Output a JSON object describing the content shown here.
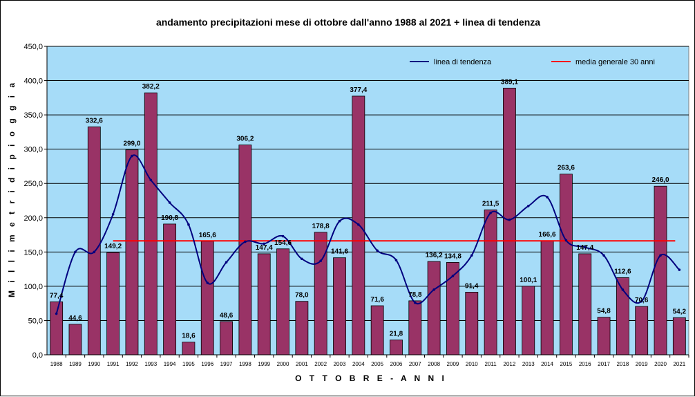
{
  "chart_data": {
    "type": "bar",
    "title": "andamento precipitazioni mese di ottobre dall'anno 1988 al 2021 + linea di tendenza",
    "xlabel": "O T T O B R E  -  A N N I",
    "ylabel": "M i l l i m e t r i   d i   p i o g g i a",
    "ylim": [
      0,
      450
    ],
    "yticks": [
      "0,0",
      "50,0",
      "100,0",
      "150,0",
      "200,0",
      "250,0",
      "300,0",
      "350,0",
      "400,0",
      "450,0"
    ],
    "ytick_values": [
      0,
      50,
      100,
      150,
      200,
      250,
      300,
      350,
      400,
      450
    ],
    "grid": true,
    "legend_position": "top-right",
    "categories": [
      "1988",
      "1989",
      "1990",
      "1991",
      "1992",
      "1993",
      "1994",
      "1995",
      "1996",
      "1997",
      "1998",
      "1999",
      "2000",
      "2001",
      "2002",
      "2003",
      "2004",
      "2005",
      "2006",
      "2007",
      "2008",
      "2009",
      "2010",
      "2011",
      "2012",
      "2013",
      "2014",
      "2015",
      "2016",
      "2017",
      "2018",
      "2019",
      "2020",
      "2021"
    ],
    "values": [
      77.4,
      44.6,
      332.6,
      149.2,
      299.0,
      382.2,
      190.8,
      18.6,
      165.6,
      48.6,
      306.2,
      147.4,
      154.6,
      78.0,
      178.8,
      141.6,
      377.4,
      71.6,
      21.8,
      78.8,
      136.2,
      134.8,
      91.4,
      211.5,
      389.1,
      100.1,
      166.6,
      263.6,
      147.4,
      54.8,
      112.6,
      70.6,
      246.0,
      54.2
    ],
    "value_labels": [
      "77,4",
      "44,6",
      "332,6",
      "149,2",
      "299,0",
      "382,2",
      "190,8",
      "18,6",
      "165,6",
      "48,6",
      "306,2",
      "147,4",
      "154,6",
      "78,0",
      "178,8",
      "141,6",
      "377,4",
      "71,6",
      "21,8",
      "78,8",
      "136,2",
      "134,8",
      "91,4",
      "211,5",
      "389,1",
      "100,1",
      "166,6",
      "263,6",
      "147,4",
      "54,8",
      "112,6",
      "70,6",
      "246,0",
      "54,2"
    ],
    "trend": {
      "name": "linea di tendenza",
      "values": [
        60,
        150,
        150,
        205,
        290,
        255,
        222,
        190,
        105,
        135,
        165,
        162,
        173,
        140,
        137,
        195,
        190,
        152,
        138,
        76,
        95,
        115,
        145,
        207,
        197,
        217,
        230,
        167,
        157,
        145,
        95,
        78,
        145,
        124
      ]
    },
    "average": {
      "name": "media generale 30 anni",
      "value": 166.2
    },
    "colors": {
      "plot_background": "#a6dcf8",
      "bar": "#993366",
      "trend": "#00007f",
      "average": "#ff0000",
      "gridline": "#000000"
    }
  }
}
